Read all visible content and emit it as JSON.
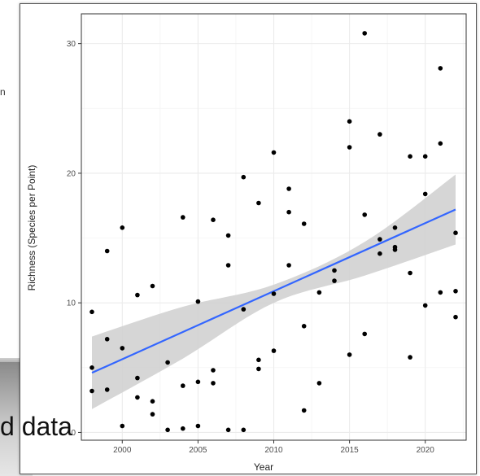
{
  "background": {
    "slide_fragment_text": "n",
    "caption_fragment": "d data"
  },
  "colors": {
    "trend_line": "#3366ff",
    "confidence_band": "#cfcfcf",
    "points": "#000000",
    "grid": "#ebebeb"
  },
  "chart_data": {
    "type": "scatter",
    "xlabel": "Year",
    "ylabel": "Richness (Species per Point)",
    "xlim": [
      1997.3,
      2022.7
    ],
    "ylim": [
      -0.6,
      32.3
    ],
    "x_ticks": [
      2000,
      2005,
      2010,
      2015,
      2020
    ],
    "y_ticks": [
      0,
      10,
      20,
      30
    ],
    "grid": true,
    "trend": {
      "type": "linear",
      "x": [
        1998,
        2022
      ],
      "y": [
        4.6,
        17.2
      ]
    },
    "confidence_band": {
      "x": [
        1998,
        2004,
        2010,
        2016,
        2022
      ],
      "upper": [
        7.4,
        9.7,
        11.4,
        14.7,
        19.9
      ],
      "lower": [
        1.8,
        5.7,
        10.0,
        12.1,
        14.5
      ]
    },
    "points": {
      "x": [
        1998,
        1998,
        1998,
        1999,
        1999,
        1999,
        2000,
        2000,
        2000,
        2001,
        2001,
        2001,
        2002,
        2002,
        2002,
        2003,
        2003,
        2004,
        2004,
        2004,
        2005,
        2005,
        2005,
        2006,
        2006,
        2006,
        2007,
        2007,
        2007,
        2008,
        2008,
        2008,
        2009,
        2009,
        2009,
        2010,
        2010,
        2010,
        2011,
        2011,
        2011,
        2012,
        2012,
        2012,
        2013,
        2013,
        2014,
        2014,
        2015,
        2015,
        2015,
        2016,
        2016,
        2016,
        2017,
        2017,
        2017,
        2018,
        2018,
        2018,
        2019,
        2019,
        2019,
        2020,
        2020,
        2020,
        2021,
        2021,
        2021,
        2022,
        2022,
        2022
      ],
      "y": [
        9.3,
        5.0,
        3.2,
        14.0,
        7.2,
        3.3,
        15.8,
        6.5,
        0.5,
        10.6,
        4.2,
        2.7,
        11.3,
        2.4,
        1.4,
        5.4,
        0.2,
        16.6,
        3.6,
        0.3,
        10.1,
        3.9,
        0.5,
        16.4,
        4.8,
        3.8,
        15.2,
        12.9,
        0.2,
        19.7,
        9.5,
        0.2,
        17.7,
        5.6,
        4.9,
        21.6,
        10.7,
        6.3,
        18.8,
        17.0,
        12.9,
        16.1,
        8.2,
        1.7,
        10.8,
        3.8,
        12.5,
        11.7,
        24.0,
        22.0,
        6.0,
        30.8,
        16.8,
        7.6,
        23.0,
        14.9,
        13.8,
        15.8,
        14.1,
        14.3,
        21.3,
        12.3,
        5.8,
        21.3,
        18.4,
        9.8,
        28.1,
        22.3,
        10.8,
        15.4,
        10.9,
        8.9
      ]
    }
  }
}
